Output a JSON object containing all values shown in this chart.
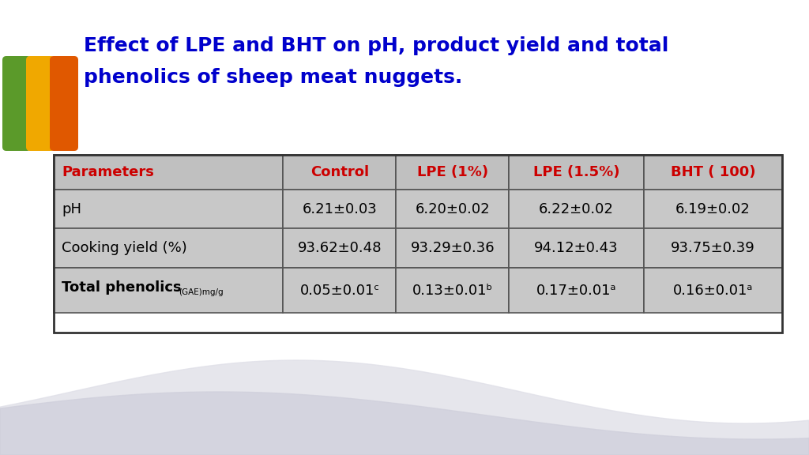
{
  "title_line1": "Effect of LPE and BHT on pH, product yield and total",
  "title_line2": "phenolics of sheep meat nuggets",
  "title_color": "#0000CC",
  "title_fontsize": 18,
  "header_row": [
    "Parameters",
    "Control",
    "LPE (1%)",
    "LPE (1.5%)",
    "BHT ( 100)"
  ],
  "header_color": "#CC0000",
  "data_rows": [
    [
      "pH",
      "6.21±0.03",
      "6.20±0.02",
      "6.22±0.02",
      "6.19±0.02"
    ],
    [
      "Cooking yield (%)",
      "93.62±0.48",
      "93.29±0.36",
      "94.12±0.43",
      "93.75±0.39"
    ],
    [
      "Total phenolics",
      "0.05±0.01ᶜ",
      "0.13±0.01ᵇ",
      "0.17±0.01ᵃ",
      "0.16±0.01ᵃ"
    ]
  ],
  "row3_subtitle": "(GAE)mg/g",
  "cell_bg_header": "#C0C0C0",
  "cell_bg_data": "#C8C8C8",
  "border_color": "#555555",
  "background_color": "#FFFFFF",
  "left_bar_colors": [
    "#5B9A2A",
    "#F0A800",
    "#E05800"
  ],
  "wave_color1": "#E0E0E8",
  "wave_color2": "#D0D0DC"
}
